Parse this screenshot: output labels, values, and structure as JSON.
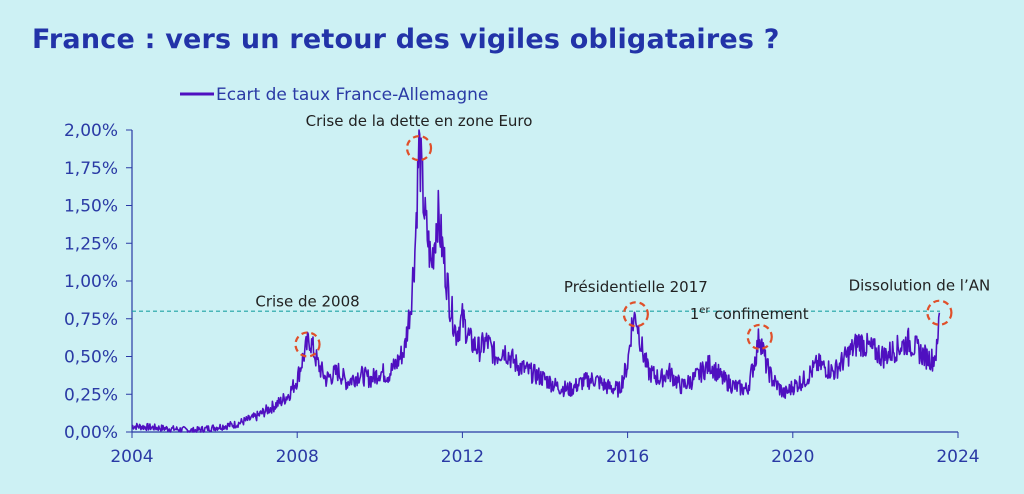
{
  "title": "France : vers un retour des vigiles obligataires ?",
  "colors": {
    "series": "#4f10c0",
    "axis": "#2a3aa5",
    "threshold": "#1ea3a3",
    "circle": "#e0502a",
    "title": "#2233a8",
    "background": "#cdf1f4"
  },
  "chart_data": {
    "type": "line",
    "title": "France : vers un retour des vigiles obligataires ?",
    "xlabel": "",
    "ylabel": "",
    "xlim": [
      2004,
      2024
    ],
    "ylim": [
      0,
      2.0
    ],
    "x_ticks": [
      "2004",
      "2008",
      "2012",
      "2016",
      "2020",
      "2024"
    ],
    "y_ticks": [
      "0,00%",
      "0,25%",
      "0,50%",
      "0,75%",
      "1,00%",
      "1,25%",
      "1,50%",
      "1,75%",
      "2,00%"
    ],
    "legend_position": "top-left",
    "grid": false,
    "threshold": 0.8,
    "series": [
      {
        "name": "Ecart de taux France-Allemagne",
        "x": [
          2004.0,
          2004.5,
          2005.0,
          2005.5,
          2006.0,
          2006.5,
          2007.0,
          2007.3,
          2007.6,
          2007.8,
          2008.0,
          2008.15,
          2008.3,
          2008.5,
          2008.7,
          2009.0,
          2009.2,
          2009.5,
          2009.8,
          2010.0,
          2010.2,
          2010.4,
          2010.6,
          2010.75,
          2010.85,
          2010.95,
          2011.1,
          2011.25,
          2011.4,
          2011.55,
          2011.7,
          2011.85,
          2012.0,
          2012.2,
          2012.4,
          2012.6,
          2012.8,
          2013.0,
          2013.3,
          2013.6,
          2014.0,
          2014.3,
          2014.6,
          2014.9,
          2015.2,
          2015.5,
          2015.8,
          2016.0,
          2016.1,
          2016.2,
          2016.35,
          2016.5,
          2016.8,
          2017.0,
          2017.3,
          2017.6,
          2018.0,
          2018.3,
          2018.6,
          2018.9,
          2019.1,
          2019.2,
          2019.35,
          2019.5,
          2019.8,
          2020.0,
          2020.3,
          2020.6,
          2021.0,
          2021.3,
          2021.6,
          2021.9,
          2022.2,
          2022.5,
          2022.8,
          2023.0,
          2023.2,
          2023.4,
          2023.5,
          2023.55
        ],
        "values": [
          0.04,
          0.03,
          0.02,
          0.01,
          0.03,
          0.05,
          0.1,
          0.15,
          0.2,
          0.25,
          0.35,
          0.5,
          0.62,
          0.45,
          0.35,
          0.4,
          0.33,
          0.38,
          0.35,
          0.4,
          0.38,
          0.45,
          0.55,
          0.85,
          1.2,
          1.9,
          1.4,
          1.1,
          1.45,
          1.15,
          0.85,
          0.65,
          0.75,
          0.6,
          0.55,
          0.6,
          0.5,
          0.55,
          0.45,
          0.4,
          0.35,
          0.3,
          0.28,
          0.33,
          0.35,
          0.3,
          0.28,
          0.45,
          0.7,
          0.78,
          0.55,
          0.4,
          0.35,
          0.4,
          0.3,
          0.35,
          0.45,
          0.35,
          0.3,
          0.28,
          0.5,
          0.65,
          0.45,
          0.35,
          0.25,
          0.3,
          0.35,
          0.45,
          0.4,
          0.5,
          0.6,
          0.55,
          0.5,
          0.55,
          0.6,
          0.55,
          0.5,
          0.48,
          0.55,
          0.79
        ]
      }
    ],
    "annotations": [
      {
        "text": "Crise de 2008",
        "x": 2008.25,
        "y": 0.58
      },
      {
        "text": "Crise de la dette en zone Euro",
        "x": 2010.95,
        "y": 1.88
      },
      {
        "text": "Présidentielle 2017",
        "x": 2016.2,
        "y": 0.78
      },
      {
        "text": "confinement",
        "sup": "er",
        "prefix": "1",
        "x": 2019.2,
        "y": 0.63
      },
      {
        "text": "Dissolution de l’AN",
        "x": 2023.55,
        "y": 0.79
      }
    ]
  }
}
